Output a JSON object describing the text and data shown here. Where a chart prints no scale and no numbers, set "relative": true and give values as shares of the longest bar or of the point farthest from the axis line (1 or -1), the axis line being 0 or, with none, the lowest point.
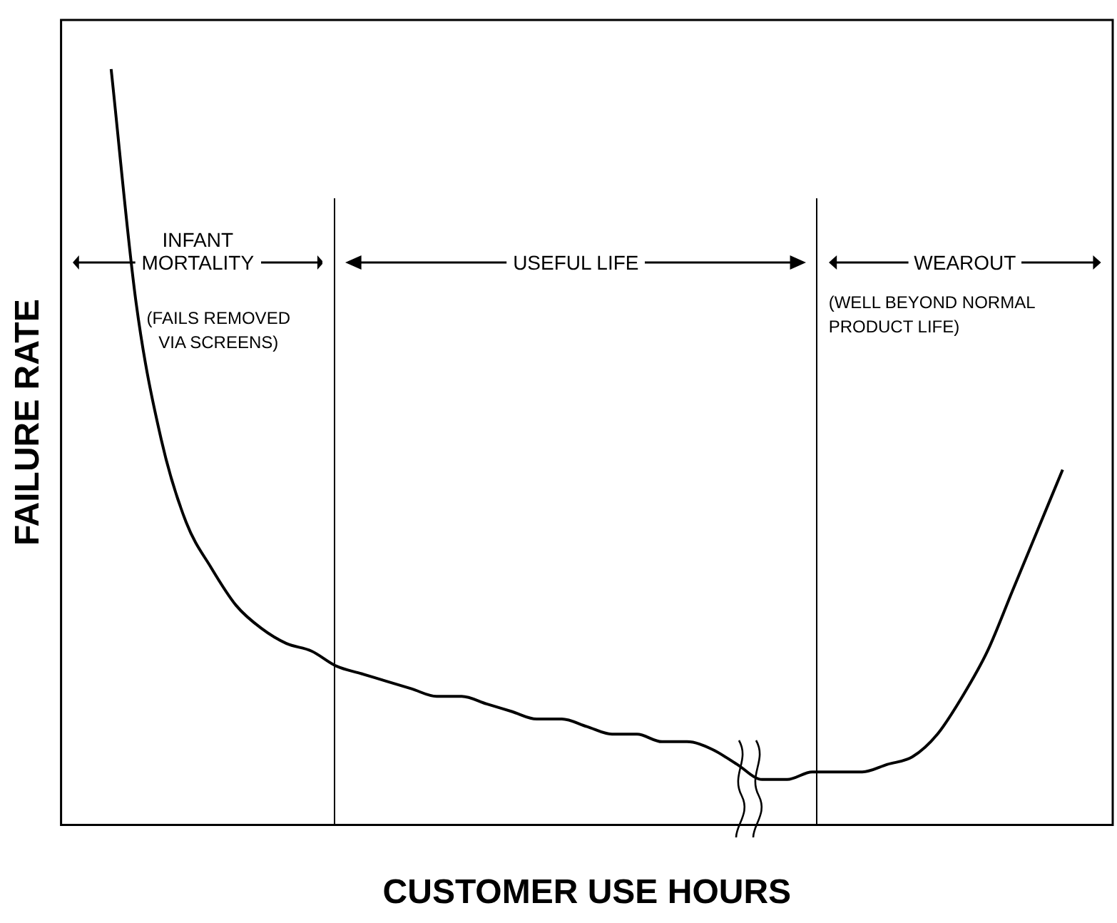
{
  "chart_data": {
    "type": "line",
    "xlabel": "CUSTOMER USE HOURS",
    "ylabel": "FAILURE RATE",
    "relative": true,
    "tick_labels": false,
    "grid": false,
    "legend": false,
    "categories": [
      null,
      null,
      null,
      null,
      null,
      null,
      null,
      null,
      null,
      null,
      null,
      null,
      null,
      null,
      null,
      null,
      null,
      null,
      null,
      null,
      null,
      null,
      null,
      null,
      null,
      null,
      null,
      null,
      null,
      null,
      null,
      null,
      null,
      null,
      null,
      null,
      null,
      null,
      null,
      null,
      null,
      null,
      null
    ],
    "values": [
      null,
      null,
      1.0,
      0.69,
      0.51,
      0.4,
      0.34,
      0.29,
      0.26,
      0.24,
      0.23,
      0.21,
      0.2,
      0.19,
      0.18,
      0.17,
      0.17,
      0.16,
      0.15,
      0.14,
      0.14,
      0.13,
      0.12,
      0.12,
      0.11,
      0.11,
      0.1,
      0.08,
      0.06,
      0.06,
      0.07,
      0.07,
      0.07,
      0.08,
      0.09,
      0.12,
      0.17,
      0.23,
      0.31,
      0.39,
      0.47,
      null,
      null
    ],
    "color": "#000000",
    "annotations": [
      "INFANT MORTALITY",
      "USEFUL LIFE",
      "WEAROUT",
      "(FAILS REMOVED VIA SCREENS)",
      "(WELL BEYOND NORMAL PRODUCT LIFE)"
    ]
  }
}
